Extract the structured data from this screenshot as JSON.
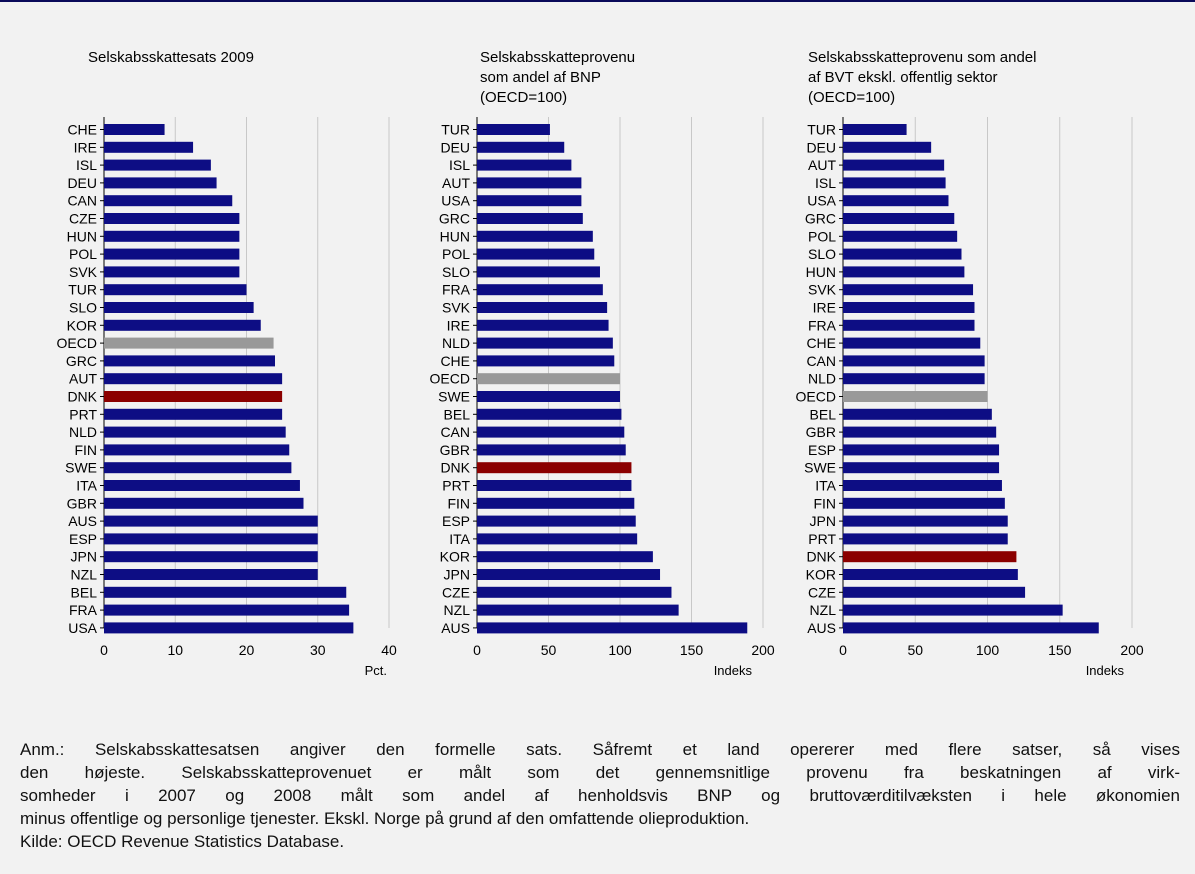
{
  "colors": {
    "bar": "#0d0d84",
    "oecd": "#999999",
    "dnk": "#8b0000",
    "grid": "#c8c8c8",
    "background": "#f2f2f2"
  },
  "chart_data": [
    {
      "type": "bar",
      "orientation": "horizontal",
      "title": "Selskabsskattesats 2009",
      "xlabel": "Pct.",
      "xlim": [
        0,
        40
      ],
      "xticks": [
        0,
        10,
        20,
        30,
        40
      ],
      "grid": true,
      "categories": [
        "CHE",
        "IRE",
        "ISL",
        "DEU",
        "CAN",
        "CZE",
        "HUN",
        "POL",
        "SVK",
        "TUR",
        "SLO",
        "KOR",
        "OECD",
        "GRC",
        "AUT",
        "DNK",
        "PRT",
        "NLD",
        "FIN",
        "SWE",
        "ITA",
        "GBR",
        "AUS",
        "ESP",
        "JPN",
        "NZL",
        "BEL",
        "FRA",
        "USA"
      ],
      "values": [
        8.5,
        12.5,
        15,
        15.8,
        18,
        19,
        19,
        19,
        19,
        20,
        21,
        22,
        23.8,
        24,
        25,
        25,
        25,
        25.5,
        26,
        26.3,
        27.5,
        28,
        30,
        30,
        30,
        30,
        34,
        34.4,
        35
      ]
    },
    {
      "type": "bar",
      "orientation": "horizontal",
      "title_lines": [
        "Selskabsskatteprovenu",
        "som andel af BNP",
        "(OECD=100)"
      ],
      "xlabel": "Indeks",
      "xlim": [
        0,
        200
      ],
      "xticks": [
        0,
        50,
        100,
        150,
        200
      ],
      "grid": true,
      "categories": [
        "TUR",
        "DEU",
        "ISL",
        "AUT",
        "USA",
        "GRC",
        "HUN",
        "POL",
        "SLO",
        "FRA",
        "SVK",
        "IRE",
        "NLD",
        "CHE",
        "OECD",
        "SWE",
        "BEL",
        "CAN",
        "GBR",
        "DNK",
        "PRT",
        "FIN",
        "ESP",
        "ITA",
        "KOR",
        "JPN",
        "CZE",
        "NZL",
        "AUS"
      ],
      "values": [
        51,
        61,
        66,
        73,
        73,
        74,
        81,
        82,
        86,
        88,
        91,
        92,
        95,
        96,
        100,
        100,
        101,
        103,
        104,
        108,
        108,
        110,
        111,
        112,
        123,
        128,
        136,
        141,
        189
      ]
    },
    {
      "type": "bar",
      "orientation": "horizontal",
      "title_lines": [
        "Selskabsskatteprovenu som andel",
        "af BVT ekskl. offentlig sektor",
        "(OECD=100)"
      ],
      "xlabel": "Indeks",
      "xlim": [
        0,
        200
      ],
      "xticks": [
        0,
        50,
        100,
        150,
        200
      ],
      "grid": true,
      "categories": [
        "TUR",
        "DEU",
        "AUT",
        "ISL",
        "USA",
        "GRC",
        "POL",
        "SLO",
        "HUN",
        "SVK",
        "IRE",
        "FRA",
        "CHE",
        "CAN",
        "NLD",
        "OECD",
        "BEL",
        "GBR",
        "ESP",
        "SWE",
        "ITA",
        "FIN",
        "JPN",
        "PRT",
        "DNK",
        "KOR",
        "CZE",
        "NZL",
        "AUS"
      ],
      "values": [
        44,
        61,
        70,
        71,
        73,
        77,
        79,
        82,
        84,
        90,
        91,
        91,
        95,
        98,
        98,
        100,
        103,
        106,
        108,
        108,
        110,
        112,
        114,
        114,
        120,
        121,
        126,
        152,
        177
      ]
    }
  ],
  "note": {
    "line1": "Anm.: Selskabsskattesatsen angiver den formelle sats. Såfremt et land opererer med flere satser, så vises",
    "line2": "den højeste. Selskabsskatteprovenuet er målt som det gennemsnitlige provenu fra beskatningen af virk-",
    "line3": "somheder i 2007 og 2008 målt som andel af henholdsvis BNP og bruttoværditilvæksten i hele økonomien",
    "line4": "minus offentlige og personlige tjenester. Ekskl. Norge på grund af den omfattende olieproduktion.",
    "source": "Kilde: OECD Revenue Statistics Database."
  }
}
